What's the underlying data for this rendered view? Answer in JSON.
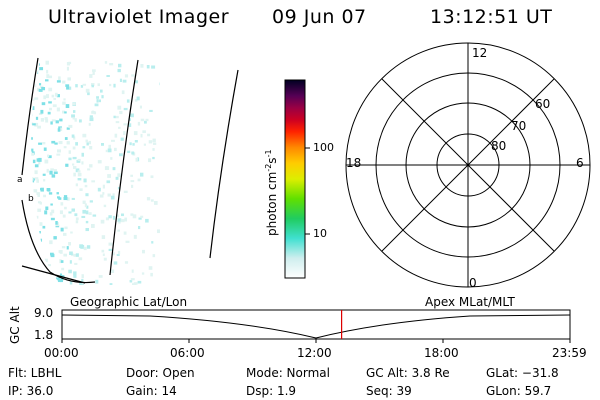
{
  "header": {
    "title": "Ultraviolet Imager",
    "date": "09 Jun 07",
    "time": "13:12:51 UT"
  },
  "colorbar": {
    "label": "photon cm",
    "label_sup1": "-2",
    "label_s": "s",
    "label_sup2": "-1",
    "ticks": [
      "100",
      "10"
    ]
  },
  "image_panel": {
    "edge_markers": [
      "a",
      "b"
    ]
  },
  "polar_plot": {
    "mlt_labels": {
      "top": "12",
      "bottom": "0",
      "left": "18",
      "right": "6"
    },
    "lat_labels": [
      "60",
      "70",
      "80"
    ]
  },
  "altitude_plot": {
    "left_label": "Geographic Lat/Lon",
    "right_label": "Apex MLat/MLT",
    "y_axis_label": "GC Alt",
    "y_ticks": [
      "9.0",
      "1.8"
    ],
    "x_ticks": [
      "00:00",
      "06:00",
      "12:00",
      "18:00",
      "23:59"
    ],
    "current_time_hours": 13.21,
    "marker_color": "#dd0000"
  },
  "info": {
    "flt": "Flt: LBHL",
    "ip": "IP: 36.0",
    "door": "Door: Open",
    "gain": "Gain: 14",
    "mode": "Mode: Normal",
    "dsp": "Dsp:    1.9",
    "gc_alt": "GC Alt: 3.8 Re",
    "seq": "Seq: 39",
    "glat": "GLat: −31.8",
    "glon": "GLon:  59.7"
  }
}
